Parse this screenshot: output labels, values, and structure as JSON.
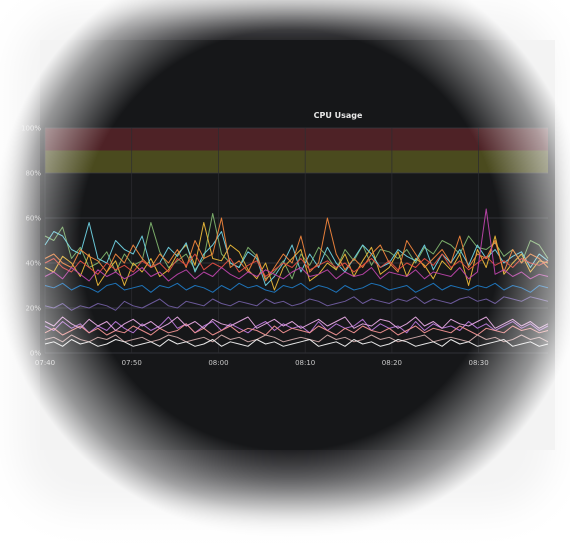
{
  "chart_data": {
    "type": "line",
    "title": "CPU Usage",
    "ylim": [
      0,
      100
    ],
    "y_ticks": [
      "0%",
      "20%",
      "40%",
      "60%",
      "80%",
      "100%"
    ],
    "y_tick_values": [
      0,
      20,
      40,
      60,
      80,
      100
    ],
    "x_ticks": [
      "07:40",
      "07:50",
      "08:00",
      "08:10",
      "08:20",
      "08:30"
    ],
    "x_tick_minutes": [
      0,
      10,
      20,
      30,
      40,
      50
    ],
    "x_range_minutes": [
      0,
      58
    ],
    "grid": true,
    "thresholds": [
      {
        "from": 80,
        "to": 90,
        "color": "#4a4a1e"
      },
      {
        "from": 90,
        "to": 100,
        "color": "#4e2226"
      }
    ],
    "series": [
      {
        "color": "#7eb26d",
        "values": [
          52,
          50,
          56,
          42,
          47,
          38,
          40,
          45,
          36,
          44,
          39,
          41,
          58,
          45,
          38,
          41,
          44,
          37,
          42,
          62,
          44,
          40,
          38,
          47,
          43,
          33,
          36,
          41,
          33,
          44,
          39,
          47,
          43,
          37,
          46,
          41,
          48,
          39,
          46,
          45,
          42,
          46,
          40,
          47,
          44,
          50,
          48,
          44,
          52,
          47,
          46,
          49,
          43,
          46,
          40,
          50,
          48,
          42
        ]
      },
      {
        "color": "#eab839",
        "values": [
          38,
          36,
          43,
          40,
          34,
          44,
          30,
          36,
          41,
          30,
          40,
          36,
          42,
          34,
          37,
          44,
          48,
          39,
          58,
          42,
          41,
          48,
          45,
          37,
          33,
          40,
          28,
          38,
          42,
          46,
          32,
          35,
          40,
          37,
          44,
          34,
          41,
          47,
          35,
          38,
          45,
          34,
          42,
          39,
          33,
          41,
          37,
          44,
          30,
          46,
          38,
          52,
          35,
          40,
          44,
          36,
          41,
          40
        ]
      },
      {
        "color": "#6ed0e0",
        "values": [
          48,
          54,
          52,
          46,
          44,
          58,
          42,
          40,
          50,
          46,
          44,
          52,
          38,
          40,
          47,
          43,
          49,
          36,
          44,
          48,
          54,
          40,
          38,
          45,
          42,
          30,
          34,
          40,
          48,
          36,
          44,
          38,
          47,
          40,
          36,
          42,
          48,
          44,
          38,
          40,
          46,
          43,
          41,
          48,
          37,
          44,
          40,
          46,
          39,
          48,
          42,
          46,
          40,
          43,
          45,
          38,
          44,
          41
        ]
      },
      {
        "color": "#ef843c",
        "values": [
          42,
          44,
          40,
          38,
          46,
          43,
          41,
          36,
          44,
          40,
          48,
          42,
          38,
          44,
          40,
          46,
          38,
          50,
          42,
          44,
          60,
          38,
          41,
          36,
          44,
          32,
          38,
          44,
          40,
          52,
          36,
          40,
          60,
          44,
          37,
          42,
          38,
          44,
          48,
          40,
          36,
          50,
          44,
          38,
          42,
          46,
          40,
          52,
          38,
          44,
          42,
          50,
          36,
          46,
          40,
          44,
          42,
          38
        ]
      },
      {
        "color": "#e24d42",
        "values": [
          40,
          42,
          38,
          36,
          41,
          38,
          35,
          40,
          37,
          39,
          36,
          41,
          38,
          40,
          36,
          42,
          39,
          44,
          37,
          40,
          38,
          42,
          36,
          39,
          41,
          34,
          37,
          40,
          38,
          42,
          37,
          39,
          41,
          38,
          40,
          36,
          39,
          42,
          38,
          41,
          37,
          40,
          38,
          42,
          39,
          44,
          38,
          41,
          37,
          40,
          43,
          39,
          41,
          38,
          42,
          40,
          39,
          41
        ]
      },
      {
        "color": "#1f78c1",
        "values": [
          30,
          29,
          31,
          28,
          30,
          29,
          27,
          30,
          31,
          28,
          29,
          30,
          27,
          30,
          29,
          31,
          28,
          30,
          29,
          27,
          30,
          28,
          31,
          29,
          30,
          28,
          27,
          30,
          29,
          31,
          28,
          30,
          29,
          27,
          30,
          28,
          29,
          31,
          30,
          28,
          29,
          30,
          27,
          29,
          31,
          28,
          30,
          29,
          28,
          30,
          29,
          31,
          28,
          30,
          29,
          27,
          30,
          29
        ]
      },
      {
        "color": "#ba43a9",
        "values": [
          34,
          36,
          33,
          38,
          35,
          32,
          37,
          34,
          36,
          33,
          35,
          38,
          34,
          36,
          32,
          35,
          37,
          33,
          36,
          34,
          38,
          35,
          33,
          36,
          34,
          37,
          35,
          33,
          36,
          38,
          34,
          35,
          37,
          33,
          36,
          34,
          35,
          38,
          33,
          36,
          35,
          34,
          37,
          33,
          36,
          35,
          34,
          38,
          33,
          36,
          64,
          35,
          37,
          34,
          36,
          33,
          35,
          34
        ]
      },
      {
        "color": "#705da0",
        "values": [
          21,
          20,
          22,
          19,
          21,
          20,
          22,
          21,
          19,
          23,
          21,
          20,
          22,
          24,
          21,
          20,
          23,
          22,
          21,
          24,
          22,
          21,
          23,
          22,
          21,
          24,
          22,
          23,
          21,
          22,
          24,
          23,
          21,
          22,
          23,
          25,
          22,
          24,
          23,
          22,
          24,
          23,
          25,
          22,
          24,
          23,
          22,
          24,
          25,
          23,
          24,
          22,
          25,
          24,
          23,
          25,
          24,
          23
        ]
      },
      {
        "color": "#b877d9",
        "values": [
          12,
          10,
          14,
          11,
          13,
          9,
          12,
          10,
          14,
          11,
          9,
          13,
          10,
          12,
          16,
          11,
          13,
          9,
          12,
          14,
          10,
          13,
          11,
          9,
          12,
          14,
          10,
          13,
          11,
          12,
          9,
          14,
          10,
          13,
          11,
          12,
          15,
          10,
          13,
          11,
          12,
          9,
          14,
          10,
          13,
          11,
          12,
          10,
          14,
          11,
          13,
          10,
          12,
          14,
          11,
          13,
          10,
          12
        ]
      },
      {
        "color": "#f29191",
        "values": [
          9,
          11,
          8,
          10,
          12,
          9,
          11,
          8,
          10,
          9,
          12,
          10,
          8,
          11,
          9,
          10,
          13,
          9,
          11,
          8,
          10,
          12,
          9,
          11,
          10,
          8,
          12,
          9,
          11,
          10,
          9,
          12,
          10,
          8,
          11,
          9,
          12,
          10,
          9,
          11,
          8,
          10,
          12,
          9,
          11,
          10,
          9,
          12,
          10,
          8,
          11,
          10,
          9,
          12,
          10,
          11,
          9,
          10
        ]
      },
      {
        "color": "#e5a8e2",
        "values": [
          14,
          12,
          16,
          13,
          11,
          15,
          12,
          14,
          10,
          13,
          15,
          12,
          14,
          11,
          13,
          16,
          12,
          14,
          11,
          15,
          13,
          12,
          14,
          16,
          11,
          13,
          15,
          12,
          14,
          11,
          13,
          15,
          12,
          14,
          16,
          11,
          13,
          12,
          15,
          14,
          11,
          13,
          16,
          12,
          14,
          11,
          15,
          13,
          12,
          14,
          16,
          11,
          13,
          15,
          12,
          14,
          11,
          13
        ]
      },
      {
        "color": "#cfa8a8",
        "values": [
          6,
          7,
          5,
          8,
          6,
          5,
          7,
          6,
          8,
          5,
          6,
          7,
          5,
          6,
          8,
          7,
          5,
          6,
          7,
          5,
          8,
          6,
          7,
          5,
          6,
          8,
          7,
          5,
          6,
          7,
          6,
          5,
          8,
          6,
          7,
          5,
          6,
          8,
          6,
          7,
          5,
          6,
          7,
          8,
          5,
          6,
          7,
          6,
          5,
          8,
          6,
          7,
          5,
          6,
          8,
          6,
          7,
          5
        ]
      },
      {
        "color": "#f2f2f2",
        "values": [
          4,
          5,
          3,
          6,
          4,
          5,
          3,
          4,
          6,
          5,
          3,
          4,
          5,
          3,
          6,
          4,
          5,
          3,
          4,
          6,
          3,
          5,
          4,
          3,
          6,
          4,
          5,
          3,
          4,
          5,
          6,
          3,
          4,
          5,
          3,
          6,
          4,
          5,
          3,
          4,
          6,
          5,
          3,
          4,
          5,
          3,
          6,
          4,
          5,
          3,
          4,
          5,
          6,
          3,
          4,
          5,
          3,
          4
        ]
      }
    ]
  }
}
